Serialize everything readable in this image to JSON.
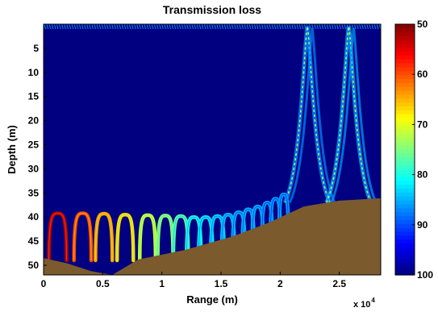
{
  "chart_data": {
    "type": "heatmap",
    "title": "Transmission loss",
    "xlabel": "Range (m)",
    "ylabel": "Depth (m)",
    "x_multiplier": "x 10",
    "x_multiplier_exp": "4",
    "xlim": [
      0,
      28500
    ],
    "ylim": [
      52,
      0
    ],
    "xticks": [
      {
        "value": 0,
        "label": "0"
      },
      {
        "value": 5000,
        "label": "0.5"
      },
      {
        "value": 10000,
        "label": "1"
      },
      {
        "value": 15000,
        "label": "1.5"
      },
      {
        "value": 20000,
        "label": "2"
      },
      {
        "value": 25000,
        "label": "2.5"
      }
    ],
    "yticks": [
      {
        "value": 5,
        "label": "5"
      },
      {
        "value": 10,
        "label": "10"
      },
      {
        "value": 15,
        "label": "15"
      },
      {
        "value": 20,
        "label": "20"
      },
      {
        "value": 25,
        "label": "25"
      },
      {
        "value": 30,
        "label": "30"
      },
      {
        "value": 35,
        "label": "35"
      },
      {
        "value": 40,
        "label": "40"
      },
      {
        "value": 45,
        "label": "45"
      },
      {
        "value": 50,
        "label": "50"
      }
    ],
    "colorbar": {
      "min": 50,
      "max": 100,
      "reversed": true,
      "ticks": [
        {
          "value": 50,
          "label": "50"
        },
        {
          "value": 60,
          "label": "60"
        },
        {
          "value": 70,
          "label": "70"
        },
        {
          "value": 80,
          "label": "80"
        },
        {
          "value": 90,
          "label": "90"
        },
        {
          "value": 100,
          "label": "100"
        }
      ]
    },
    "background_level": 100,
    "bottom_profile": [
      [
        0,
        48.5
      ],
      [
        2000,
        49.6
      ],
      [
        4000,
        51.2
      ],
      [
        5800,
        52
      ],
      [
        8000,
        48.8
      ],
      [
        12000,
        46.8
      ],
      [
        16000,
        44
      ],
      [
        19000,
        41.2
      ],
      [
        20500,
        39.5
      ],
      [
        22000,
        37.8
      ],
      [
        25000,
        36.6
      ],
      [
        28500,
        36.1
      ]
    ],
    "near_bottom_arches": [
      {
        "x": 1200,
        "tl": 53,
        "top": 39.2
      },
      {
        "x": 3300,
        "tl": 60,
        "top": 39.2
      },
      {
        "x": 5100,
        "tl": 64,
        "top": 39.3
      },
      {
        "x": 6900,
        "tl": 67,
        "top": 39.5
      },
      {
        "x": 8800,
        "tl": 71,
        "top": 39.6
      },
      {
        "x": 10300,
        "tl": 74,
        "top": 39.7
      },
      {
        "x": 11600,
        "tl": 77,
        "top": 39.8
      },
      {
        "x": 12700,
        "tl": 80,
        "top": 40
      },
      {
        "x": 13700,
        "tl": 82,
        "top": 40
      },
      {
        "x": 14700,
        "tl": 83,
        "top": 39.8
      },
      {
        "x": 15600,
        "tl": 84,
        "top": 39.5
      },
      {
        "x": 16500,
        "tl": 85,
        "top": 39
      },
      {
        "x": 17300,
        "tl": 85,
        "top": 38.4
      },
      {
        "x": 18100,
        "tl": 85,
        "top": 37.8
      },
      {
        "x": 18900,
        "tl": 86,
        "top": 37
      },
      {
        "x": 19600,
        "tl": 86,
        "top": 36.2
      },
      {
        "x": 20300,
        "tl": 86,
        "top": 35.3
      }
    ],
    "convergence_zones": [
      {
        "x_peak": 22300,
        "min_depth": 0.5,
        "tl": 87
      },
      {
        "x_peak": 25800,
        "min_depth": 0.5,
        "tl": 86
      }
    ]
  }
}
